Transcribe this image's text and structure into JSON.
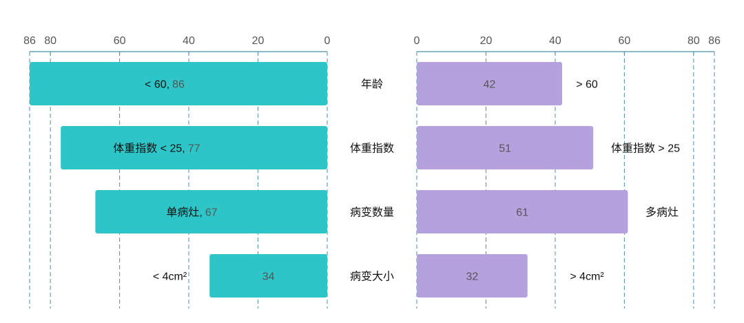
{
  "chart_data": {
    "type": "bar",
    "horizontal": true,
    "diverging": true,
    "categories": [
      "年龄",
      "体重指数",
      "病变数量",
      "病变大小"
    ],
    "left": {
      "labels": [
        "< 60",
        "体重指数 < 25",
        "单病灶",
        "< 4cm²"
      ],
      "values": [
        86,
        77,
        67,
        34
      ],
      "xlim": [
        0,
        86
      ],
      "reversed": true,
      "ticks": [
        86,
        80,
        60,
        40,
        20,
        0
      ],
      "color": "#2DC5C7"
    },
    "right": {
      "labels": [
        "> 60",
        "体重指数 > 25",
        "多病灶",
        "> 4cm²"
      ],
      "values": [
        42,
        51,
        61,
        32
      ],
      "xlim": [
        0,
        86
      ],
      "reversed": false,
      "ticks": [
        0,
        20,
        40,
        60,
        80,
        86
      ],
      "color": "#B5A1DE"
    },
    "grid": true,
    "legend": false,
    "axis_color": "#4A8FA8"
  }
}
